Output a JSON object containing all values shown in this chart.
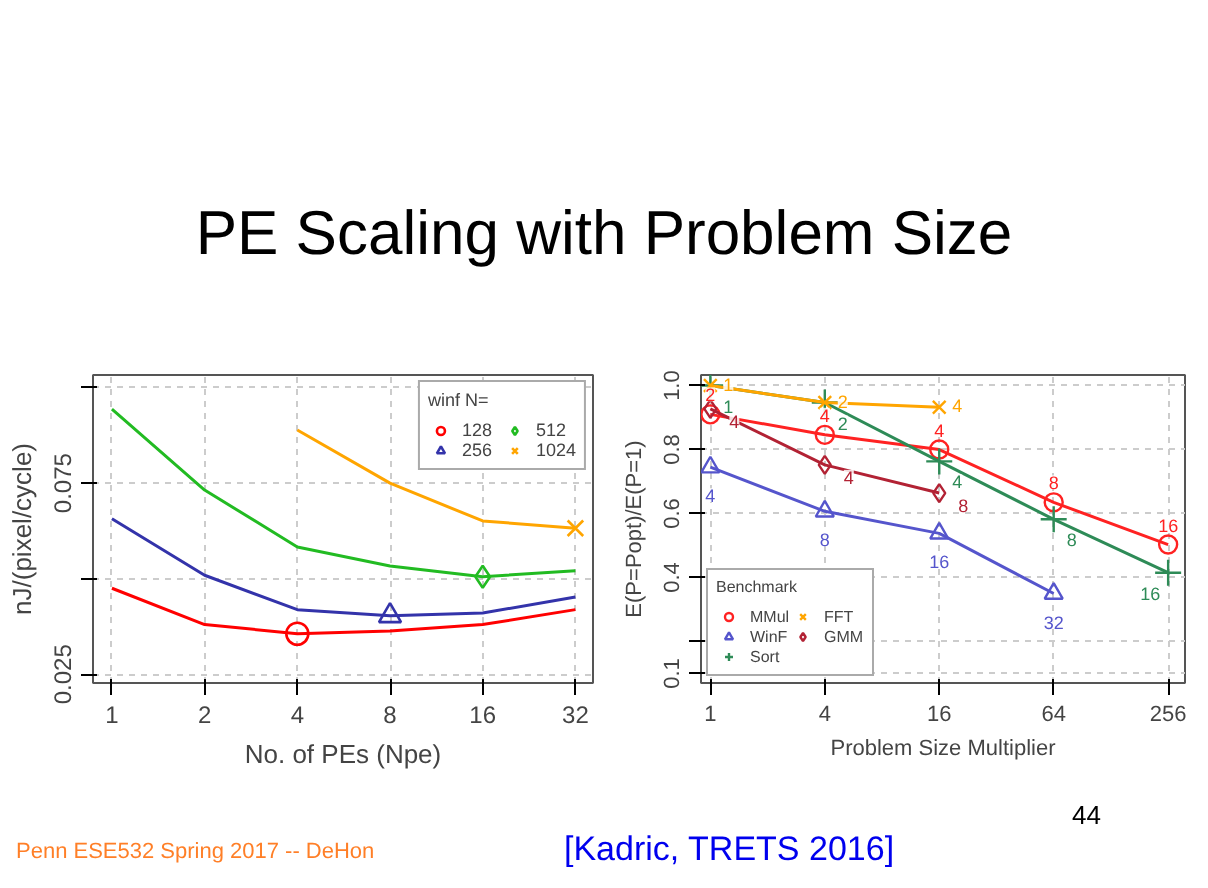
{
  "chart_data": [
    {
      "type": "line",
      "title": "PE Scaling with Problem Size",
      "xlabel": "No. of PEs (Npe)",
      "ylabel": "nJ/(pixel/cycle)",
      "legend_title": "winf N=",
      "log": "x",
      "x": [
        1,
        2,
        4,
        8,
        16,
        32
      ],
      "xlim": [
        0.868,
        36.5
      ],
      "xticks": [
        1,
        2,
        4,
        8,
        16,
        32
      ],
      "ylim": [
        0.0227,
        0.1033
      ],
      "yticks": [
        0.025,
        {
          "value": 0.05,
          "label": null
        },
        0.075,
        {
          "value": 0.1,
          "label": null
        }
      ],
      "grid": true,
      "legend": "top right",
      "series": [
        {
          "color": "#ff0000",
          "values": [
            0.0475,
            0.038,
            0.0356,
            0.0363,
            0.038,
            0.0419
          ]
        },
        {
          "color": "#3333aa",
          "values": [
            0.0657,
            0.0509,
            0.0419,
            0.0403,
            0.041,
            0.0452
          ]
        },
        {
          "color": "#22bb22",
          "values": [
            0.0944,
            0.0732,
            0.0583,
            0.0533,
            0.0505,
            0.0521
          ]
        },
        {
          "color": "#ffa500",
          "values": [
            null,
            null,
            0.0889,
            0.075,
            0.0651,
            0.0632
          ]
        },
        {
          "type": "scatter",
          "name": "128",
          "color": "#ff0000",
          "marker": "circle",
          "x": [
            4
          ],
          "values": [
            0.0356
          ]
        },
        {
          "type": "scatter",
          "name": "256",
          "color": "#3333aa",
          "marker": "triangle",
          "x": [
            8
          ],
          "values": [
            0.0403
          ]
        },
        {
          "type": "scatter",
          "name": "512",
          "color": "#22bb22",
          "marker": "diamond",
          "x": [
            16
          ],
          "values": [
            0.0505
          ]
        },
        {
          "type": "scatter",
          "name": "1024",
          "color": "#ffa500",
          "marker": "x",
          "x": [
            32
          ],
          "values": [
            0.0632
          ]
        }
      ]
    },
    {
      "type": "line",
      "xlabel": "Problem Size Multiplier",
      "ylabel": "E(P=Popt)/E(P=1)",
      "legend_title": "Benchmark",
      "log": "x",
      "xlim": [
        0.893,
        314
      ],
      "xticks": [
        1,
        4,
        16,
        64,
        256
      ],
      "ylim": [
        0.0703,
        1.033
      ],
      "yticks": [
        0.1,
        {
          "value": 0.2,
          "label": null
        },
        0.4,
        0.6,
        0.8,
        {
          "value": 1.0,
          "label": "1.0"
        }
      ],
      "grid": true,
      "legend": "bottom left",
      "series": [
        {
          "name": "MMul",
          "color": "#ff2222",
          "marker": "circle",
          "x": [
            1,
            4,
            16,
            64,
            256
          ],
          "values": [
            0.91,
            0.846,
            0.8,
            0.635,
            0.503
          ]
        },
        {
          "name": "WinF",
          "color": "#5555cc",
          "marker": "triangle",
          "x": [
            1,
            4,
            16,
            64
          ],
          "values": [
            0.745,
            0.607,
            0.538,
            0.35
          ]
        },
        {
          "name": "Sort",
          "color": "#2e8b57",
          "marker": "plus",
          "x": [
            1,
            4,
            16,
            64,
            256
          ],
          "values": [
            1.0,
            0.947,
            0.763,
            0.582,
            0.415
          ]
        },
        {
          "name": "FFT",
          "color": "#ffa500",
          "marker": "x",
          "x": [
            1,
            4,
            16
          ],
          "values": [
            1.0,
            0.947,
            0.932
          ]
        },
        {
          "name": "GMM",
          "color": "#b22234",
          "marker": "diamond",
          "x": [
            1,
            4,
            16
          ],
          "values": [
            0.927,
            0.752,
            0.664
          ]
        }
      ],
      "annotations": [
        {
          "text": "2",
          "x": 1,
          "y": 0.91
        },
        {
          "text": "4",
          "x": 4,
          "y": 0.846
        },
        {
          "text": "4",
          "x": 16,
          "y": 0.8
        },
        {
          "text": "8",
          "x": 64,
          "y": 0.635
        },
        {
          "text": "16",
          "x": 256,
          "y": 0.503
        },
        {
          "text": "4",
          "x": 1,
          "y": 0.745
        },
        {
          "text": "8",
          "x": 4,
          "y": 0.607
        },
        {
          "text": "16",
          "x": 16,
          "y": 0.538
        },
        {
          "text": "32",
          "x": 64,
          "y": 0.35
        },
        {
          "text": "1",
          "x": 1,
          "y": 1.0
        },
        {
          "text": "2",
          "x": 4,
          "y": 0.947
        },
        {
          "text": "4",
          "x": 16,
          "y": 0.763
        },
        {
          "text": "8",
          "x": 64,
          "y": 0.582
        },
        {
          "text": "16",
          "x": 256,
          "y": 0.415
        },
        {
          "text": "1",
          "x": 1,
          "y": 1.0
        },
        {
          "text": "2",
          "x": 4,
          "y": 0.947
        },
        {
          "text": "4",
          "x": 16,
          "y": 0.932
        },
        {
          "text": "4",
          "x": 1,
          "y": 0.927
        },
        {
          "text": "4",
          "x": 4,
          "y": 0.752
        },
        {
          "text": "8",
          "x": 16,
          "y": 0.664
        },
        "Penn ESE532 Spring 2017 -- DeHon",
        "[Kadric, TRETS 2016]",
        "44"
      ]
    }
  ]
}
